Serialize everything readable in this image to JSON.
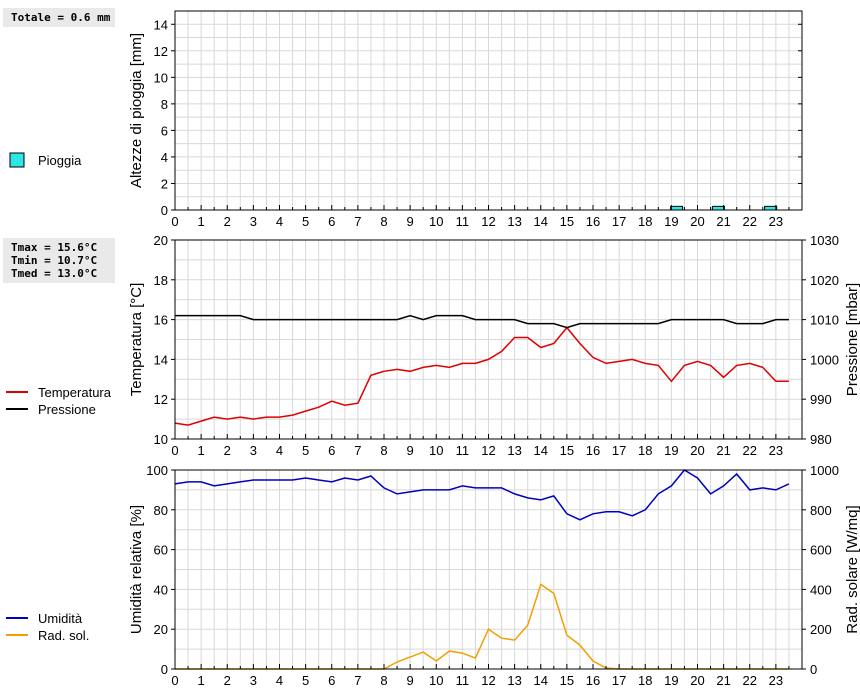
{
  "colors": {
    "rain_fill": "#2ee6e6",
    "temperature": "#e00000",
    "pressure": "#000000",
    "humidity": "#0000c0",
    "solar": "#f0a000",
    "grid": "#d8d8d8"
  },
  "chart_data": [
    {
      "type": "bar",
      "ylabel": "Altezze di pioggia [mm]",
      "ylim": [
        0,
        15
      ],
      "yticks": [
        0,
        2,
        4,
        6,
        8,
        10,
        12,
        14
      ],
      "xlim": [
        0,
        24
      ],
      "xticks": [
        0,
        1,
        2,
        3,
        4,
        5,
        6,
        7,
        8,
        9,
        10,
        11,
        12,
        13,
        14,
        15,
        16,
        17,
        18,
        19,
        20,
        21,
        22,
        23
      ],
      "grid": true,
      "summary": [
        "Totale = 0.6 mm"
      ],
      "legend_position": "left",
      "series": [
        {
          "name": "Pioggia",
          "color_key": "rain_fill",
          "x": [
            19.2,
            20.8,
            22.8
          ],
          "values": [
            0.2,
            0.2,
            0.2
          ]
        }
      ]
    },
    {
      "type": "line",
      "ylabel": "Temperatura [°C]",
      "y2label": "Pressione [mbar]",
      "ylim": [
        10,
        20
      ],
      "yticks": [
        10,
        12,
        14,
        16,
        18,
        20
      ],
      "y2lim": [
        980,
        1030
      ],
      "y2ticks": [
        980,
        990,
        1000,
        1010,
        1020,
        1030
      ],
      "xlim": [
        0,
        24
      ],
      "xticks": [
        0,
        1,
        2,
        3,
        4,
        5,
        6,
        7,
        8,
        9,
        10,
        11,
        12,
        13,
        14,
        15,
        16,
        17,
        18,
        19,
        20,
        21,
        22,
        23
      ],
      "grid": true,
      "summary": [
        "Tmax = 15.6°C",
        "Tmin = 10.7°C",
        "Tmed = 13.0°C"
      ],
      "legend_position": "left",
      "series": [
        {
          "name": "Temperatura",
          "axis": "left",
          "color_key": "temperature",
          "x": [
            0,
            0.5,
            1,
            1.5,
            2,
            2.5,
            3,
            3.5,
            4,
            4.5,
            5,
            5.5,
            6,
            6.5,
            7,
            7.5,
            8,
            8.5,
            9,
            9.5,
            10,
            10.5,
            11,
            11.5,
            12,
            12.5,
            13,
            13.5,
            14,
            14.5,
            15,
            15.5,
            16,
            16.5,
            17,
            17.5,
            18,
            18.5,
            19,
            19.5,
            20,
            20.5,
            21,
            21.5,
            22,
            22.5,
            23,
            23.5
          ],
          "values": [
            10.8,
            10.7,
            10.9,
            11.1,
            11.0,
            11.1,
            11.0,
            11.1,
            11.1,
            11.2,
            11.4,
            11.6,
            11.9,
            11.7,
            11.8,
            13.2,
            13.4,
            13.5,
            13.4,
            13.6,
            13.7,
            13.6,
            13.8,
            13.8,
            14.0,
            14.4,
            15.1,
            15.1,
            14.6,
            14.8,
            15.6,
            14.8,
            14.1,
            13.8,
            13.9,
            14.0,
            13.8,
            13.7,
            12.9,
            13.7,
            13.9,
            13.7,
            13.1,
            13.7,
            13.8,
            13.6,
            12.9,
            12.9
          ]
        },
        {
          "name": "Pressione",
          "axis": "right",
          "color_key": "pressure",
          "x": [
            0,
            0.5,
            1,
            1.5,
            2,
            2.5,
            3,
            3.5,
            4,
            4.5,
            5,
            5.5,
            6,
            6.5,
            7,
            7.5,
            8,
            8.5,
            9,
            9.5,
            10,
            10.5,
            11,
            11.5,
            12,
            12.5,
            13,
            13.5,
            14,
            14.5,
            15,
            15.5,
            16,
            16.5,
            17,
            17.5,
            18,
            18.5,
            19,
            19.5,
            20,
            20.5,
            21,
            21.5,
            22,
            22.5,
            23,
            23.5
          ],
          "values": [
            1011,
            1011,
            1011,
            1011,
            1011,
            1011,
            1010,
            1010,
            1010,
            1010,
            1010,
            1010,
            1010,
            1010,
            1010,
            1010,
            1010,
            1010,
            1011,
            1010,
            1011,
            1011,
            1011,
            1010,
            1010,
            1010,
            1010,
            1009,
            1009,
            1009,
            1008,
            1009,
            1009,
            1009,
            1009,
            1009,
            1009,
            1009,
            1010,
            1010,
            1010,
            1010,
            1010,
            1009,
            1009,
            1009,
            1010,
            1010
          ]
        }
      ]
    },
    {
      "type": "line",
      "ylabel": "Umidità relativa [%]",
      "y2label": "Rad. solare [W/mq]",
      "ylim": [
        0,
        100
      ],
      "yticks": [
        0,
        20,
        40,
        60,
        80,
        100
      ],
      "y2lim": [
        0,
        1000
      ],
      "y2ticks": [
        0,
        200,
        400,
        600,
        800,
        1000
      ],
      "xlim": [
        0,
        24
      ],
      "xticks": [
        0,
        1,
        2,
        3,
        4,
        5,
        6,
        7,
        8,
        9,
        10,
        11,
        12,
        13,
        14,
        15,
        16,
        17,
        18,
        19,
        20,
        21,
        22,
        23
      ],
      "grid": true,
      "legend_position": "left",
      "series": [
        {
          "name": "Umidità",
          "axis": "left",
          "color_key": "humidity",
          "x": [
            0,
            0.5,
            1,
            1.5,
            2,
            2.5,
            3,
            3.5,
            4,
            4.5,
            5,
            5.5,
            6,
            6.5,
            7,
            7.5,
            8,
            8.5,
            9,
            9.5,
            10,
            10.5,
            11,
            11.5,
            12,
            12.5,
            13,
            13.5,
            14,
            14.5,
            15,
            15.5,
            16,
            16.5,
            17,
            17.5,
            18,
            18.5,
            19,
            19.5,
            20,
            20.5,
            21,
            21.5,
            22,
            22.5,
            23,
            23.5
          ],
          "values": [
            93,
            94,
            94,
            92,
            93,
            94,
            95,
            95,
            95,
            95,
            96,
            95,
            94,
            96,
            95,
            97,
            91,
            88,
            89,
            90,
            90,
            90,
            92,
            91,
            91,
            91,
            88,
            86,
            85,
            87,
            78,
            75,
            78,
            79,
            79,
            77,
            80,
            88,
            92,
            100,
            96,
            88,
            92,
            98,
            90,
            91,
            90,
            93
          ]
        },
        {
          "name": "Rad. sol.",
          "axis": "right",
          "color_key": "solar",
          "x": [
            0,
            0.5,
            1,
            1.5,
            2,
            2.5,
            3,
            3.5,
            4,
            4.5,
            5,
            5.5,
            6,
            6.5,
            7,
            7.5,
            8,
            8.5,
            9,
            9.5,
            10,
            10.5,
            11,
            11.5,
            12,
            12.5,
            13,
            13.5,
            14,
            14.5,
            15,
            15.5,
            16,
            16.5,
            17,
            17.5,
            18,
            18.5,
            19,
            19.5,
            20,
            20.5,
            21,
            21.5,
            22,
            22.5,
            23,
            23.5
          ],
          "values": [
            0,
            0,
            0,
            0,
            0,
            0,
            0,
            0,
            0,
            0,
            0,
            0,
            0,
            0,
            0,
            0,
            0,
            35,
            60,
            85,
            40,
            90,
            80,
            55,
            200,
            155,
            145,
            220,
            425,
            380,
            170,
            120,
            40,
            5,
            0,
            0,
            0,
            0,
            0,
            0,
            0,
            0,
            0,
            0,
            0,
            0,
            0,
            0
          ]
        }
      ]
    }
  ]
}
